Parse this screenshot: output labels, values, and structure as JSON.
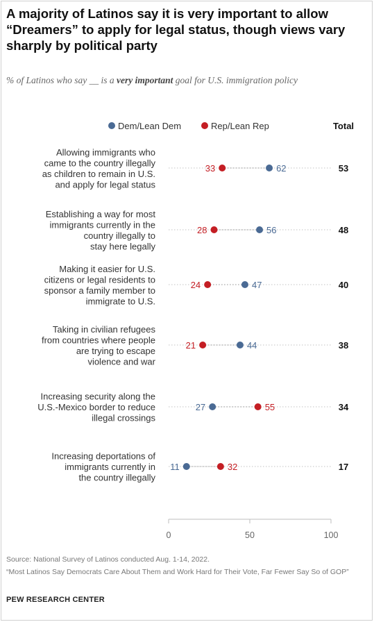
{
  "title": "A majority of Latinos say it is very important to allow “Dreamers” to apply for legal status, though views vary sharply by political party",
  "subtitle": {
    "pre": "% of Latinos who say __ is a ",
    "emph": "very important",
    "post": " goal for U.S. immigration policy"
  },
  "colors": {
    "dem": "#4a6a94",
    "rep": "#c41e24",
    "total": "#111111",
    "axis": "#cccccc"
  },
  "chart_data": {
    "type": "dot",
    "xlim": [
      0,
      100
    ],
    "xticks": [
      "0",
      "50",
      "100"
    ],
    "total_label": "Total",
    "series": [
      {
        "name": "Dem/Lean Dem",
        "color": "#4a6a94",
        "values": [
          62,
          56,
          47,
          44,
          27,
          11
        ]
      },
      {
        "name": "Rep/Lean Rep",
        "color": "#c41e24",
        "values": [
          33,
          28,
          24,
          21,
          55,
          32
        ]
      }
    ],
    "totals": [
      53,
      48,
      40,
      38,
      34,
      17
    ],
    "categories": [
      [
        "Allowing immigrants who",
        "came to the country illegally",
        "as children to remain in U.S.",
        "and apply for legal status"
      ],
      [
        "Establishing a way for most",
        "immigrants currently in the",
        "country illegally to",
        "stay here legally"
      ],
      [
        "Making it easier for U.S.",
        "citizens or legal residents to",
        "sponsor a family member to",
        "immigrate to U.S."
      ],
      [
        "Taking in civilian refugees",
        "from countries where people",
        "are trying to escape",
        "violence and war"
      ],
      [
        "Increasing security along the",
        "U.S.-Mexico border to reduce",
        "illegal crossings"
      ],
      [
        "Increasing deportations of",
        "immigrants currently in",
        "the country illegally"
      ]
    ]
  },
  "source": "Source: National Survey of Latinos conducted Aug. 1-14, 2022.",
  "note": "“Most Latinos Say Democrats Care About Them and Work Hard for Their Vote, Far Fewer Say So of GOP”",
  "brand": "PEW RESEARCH CENTER"
}
